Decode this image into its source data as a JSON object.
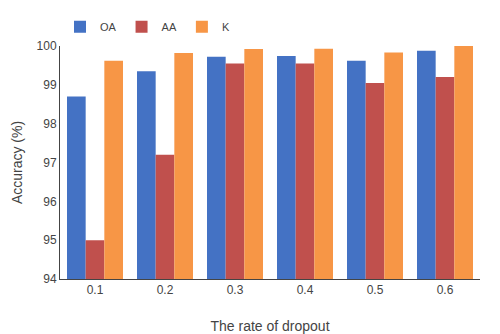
{
  "chart_data": {
    "type": "bar",
    "categories": [
      "0.1",
      "0.2",
      "0.3",
      "0.4",
      "0.5",
      "0.6"
    ],
    "series": [
      {
        "name": "OA",
        "color": "#4472c4",
        "values": [
          98.7,
          99.35,
          99.72,
          99.74,
          99.62,
          99.88
        ]
      },
      {
        "name": "AA",
        "color": "#c0504d",
        "values": [
          95.0,
          97.2,
          99.55,
          99.55,
          99.05,
          99.2
        ]
      },
      {
        "name": "K",
        "color": "#f79646",
        "values": [
          99.62,
          99.82,
          99.92,
          99.93,
          99.83,
          100.0
        ]
      }
    ],
    "xlabel": "The rate of dropout",
    "ylabel": "Accuracy (%)",
    "ylim": [
      94,
      100
    ],
    "yticks": [
      94,
      95,
      96,
      97,
      98,
      99,
      100
    ],
    "grid": false,
    "legend": "upper left"
  }
}
